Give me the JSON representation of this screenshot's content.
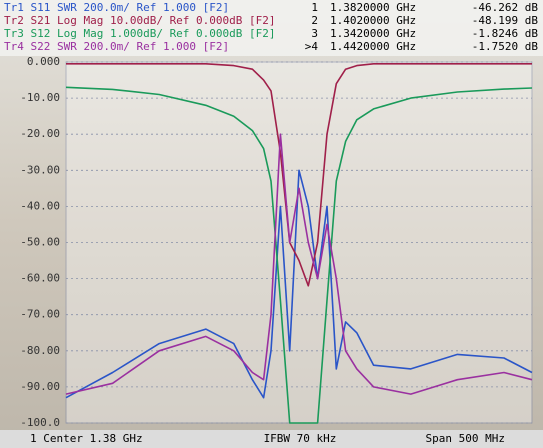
{
  "chart_data": {
    "type": "line",
    "x": [
      1.13,
      1.18,
      1.23,
      1.28,
      1.31,
      1.33,
      1.342,
      1.35,
      1.36,
      1.37,
      1.38,
      1.39,
      1.4,
      1.41,
      1.42,
      1.43,
      1.442,
      1.46,
      1.5,
      1.55,
      1.6,
      1.63
    ],
    "xlim": [
      1.13,
      1.63
    ],
    "ylim": [
      -100,
      0
    ],
    "yticks": [
      {
        "value": 0,
        "label": "0.000"
      },
      {
        "value": -10,
        "label": "-10.00"
      },
      {
        "value": -20,
        "label": "-20.00"
      },
      {
        "value": -30,
        "label": "-30.00"
      },
      {
        "value": -40,
        "label": "-40.00"
      },
      {
        "value": -50,
        "label": "-50.00"
      },
      {
        "value": -60,
        "label": "-60.00"
      },
      {
        "value": -70,
        "label": "-70.00"
      },
      {
        "value": -80,
        "label": "-80.00"
      },
      {
        "value": -90,
        "label": "-90.00"
      },
      {
        "value": -100,
        "label": "-100.0"
      }
    ],
    "grid": true,
    "series": [
      {
        "name": "Tr1 S11 SWR 200.0m/ Ref 1.000 [F2]",
        "color": "#2a55c8",
        "values": [
          -93,
          -86,
          -78,
          -74,
          -78,
          -88,
          -93,
          -80,
          -40,
          -80,
          -30,
          -40,
          -60,
          -40,
          -85,
          -72,
          -75,
          -84,
          -85,
          -81,
          -82,
          -86
        ]
      },
      {
        "name": "Tr2 S21 Log Mag 10.00dB/ Ref 0.000dB [F2]",
        "color": "#a0204a",
        "values": [
          -0.5,
          -0.5,
          -0.5,
          -0.5,
          -1,
          -2,
          -5,
          -8,
          -25,
          -50,
          -55,
          -62,
          -50,
          -20,
          -6,
          -2,
          -1,
          -0.5,
          -0.5,
          -0.5,
          -0.5,
          -0.5
        ]
      },
      {
        "name": "Tr3 S12 Log Mag 1.000dB/ Ref 0.000dB [F2]",
        "color": "#1a9a5a",
        "values": [
          -7,
          -7.6,
          -9,
          -12,
          -15,
          -19,
          -24,
          -33,
          -66,
          -100,
          -100,
          -100,
          -100,
          -66,
          -33,
          -22,
          -16,
          -13,
          -10,
          -8.3,
          -7.5,
          -7.2
        ]
      },
      {
        "name": "Tr4 S22 SWR 200.0m/ Ref 1.000 [F2]",
        "color": "#9a30a0",
        "values": [
          -92,
          -89,
          -80,
          -76,
          -80,
          -86,
          -88,
          -70,
          -20,
          -50,
          -35,
          -50,
          -60,
          -45,
          -60,
          -80,
          -85,
          -90,
          -92,
          -88,
          -86,
          -88
        ]
      }
    ],
    "markers": [
      {
        "label": "1",
        "freq": "1.3820000 GHz",
        "value": "-46.262 dB"
      },
      {
        "label": "2",
        "freq": "1.4020000 GHz",
        "value": "-48.199 dB"
      },
      {
        "label": "3",
        "freq": "1.3420000 GHz",
        "value": "-1.8246 dB"
      },
      {
        "label": ">4",
        "freq": "1.4420000 GHz",
        "value": "-1.7520 dB"
      }
    ],
    "footer": {
      "center": "1 Center 1.38 GHz",
      "ifbw": "IFBW 70 kHz",
      "span": "Span 500 MHz"
    }
  }
}
